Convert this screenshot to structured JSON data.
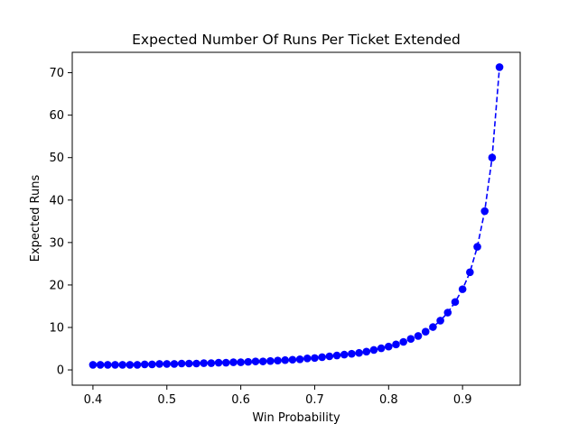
{
  "chart_data": {
    "type": "line",
    "title": "Expected Number Of Runs Per Ticket Extended",
    "xlabel": "Win Probability",
    "ylabel": "Expected Runs",
    "xlim": [
      0.372,
      0.978
    ],
    "ylim": [
      -3.6,
      74.8
    ],
    "xticks": [
      0.4,
      0.5,
      0.6,
      0.7,
      0.8,
      0.9
    ],
    "xtick_labels": [
      "0.4",
      "0.5",
      "0.6",
      "0.7",
      "0.8",
      "0.9"
    ],
    "yticks": [
      0,
      10,
      20,
      30,
      40,
      50,
      60,
      70
    ],
    "ytick_labels": [
      "0",
      "10",
      "20",
      "30",
      "40",
      "50",
      "60",
      "70"
    ],
    "grid": false,
    "series": [
      {
        "color": "#0000ff",
        "line_style": "dashed",
        "marker": "circle",
        "x": [
          0.4,
          0.41,
          0.42,
          0.43,
          0.44,
          0.45,
          0.46,
          0.47,
          0.48,
          0.49,
          0.5,
          0.51,
          0.52,
          0.53,
          0.54,
          0.55,
          0.56,
          0.57,
          0.58,
          0.59,
          0.6,
          0.61,
          0.62,
          0.63,
          0.64,
          0.65,
          0.66,
          0.67,
          0.68,
          0.69,
          0.7,
          0.71,
          0.72,
          0.73,
          0.74,
          0.75,
          0.76,
          0.77,
          0.78,
          0.79,
          0.8,
          0.81,
          0.82,
          0.83,
          0.84,
          0.85,
          0.86,
          0.87,
          0.88,
          0.89,
          0.9,
          0.91,
          0.92,
          0.93,
          0.94,
          0.95
        ],
        "y": [
          1.2,
          1.2,
          1.2,
          1.2,
          1.2,
          1.2,
          1.2,
          1.3,
          1.3,
          1.4,
          1.4,
          1.4,
          1.5,
          1.5,
          1.5,
          1.6,
          1.6,
          1.7,
          1.7,
          1.8,
          1.8,
          1.9,
          2.0,
          2.0,
          2.1,
          2.2,
          2.3,
          2.4,
          2.5,
          2.7,
          2.8,
          3.0,
          3.2,
          3.4,
          3.6,
          3.8,
          4.0,
          4.3,
          4.7,
          5.1,
          5.5,
          6.0,
          6.6,
          7.3,
          8.0,
          9.0,
          10.1,
          11.6,
          13.5,
          16.0,
          19.0,
          23.0,
          29.0,
          37.4,
          50.0,
          71.3
        ]
      }
    ]
  }
}
